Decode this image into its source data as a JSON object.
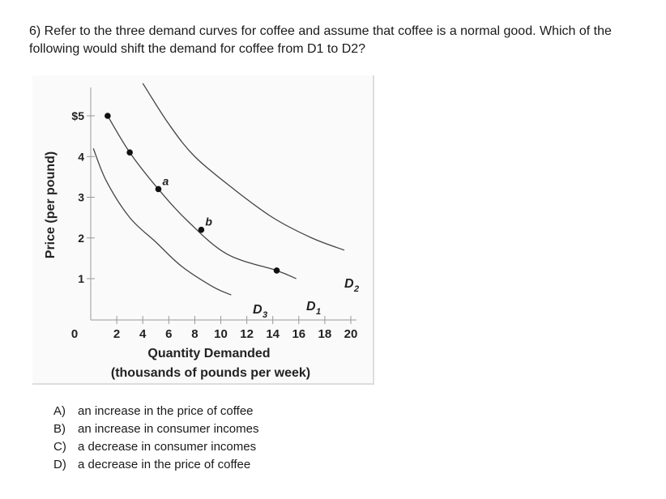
{
  "question": {
    "text": "6) Refer to the three demand curves for coffee and assume that coffee is a normal good. Which of the following would shift the demand for coffee from D1 to D2?"
  },
  "chart_data": {
    "type": "line",
    "ylabel": "Price (per pound)",
    "xlabel": "Quantity Demanded",
    "xlabel_line2": "(thousands of pounds per week)",
    "origin_label": "0",
    "xlim": [
      0,
      20
    ],
    "ylim": [
      0,
      5
    ],
    "x_ticks": [
      "2",
      "4",
      "6",
      "8",
      "10",
      "12",
      "14",
      "16",
      "18",
      "20"
    ],
    "y_ticks": [
      "$5",
      "4",
      "3",
      "2",
      "1"
    ],
    "grid": false,
    "series": [
      {
        "name": "D1",
        "label_main": "D",
        "label_sub": "1",
        "points": [
          [
            1.3,
            5.0
          ],
          [
            3.0,
            4.1
          ],
          [
            5.2,
            3.2
          ],
          [
            7.5,
            2.4
          ],
          [
            10.5,
            1.6
          ],
          [
            14.3,
            1.2
          ],
          [
            15.8,
            1.0
          ]
        ]
      },
      {
        "name": "D2",
        "label_main": "D",
        "label_sub": "2",
        "points": [
          [
            4.0,
            5.8
          ],
          [
            6.0,
            4.8
          ],
          [
            8.0,
            4.0
          ],
          [
            11.0,
            3.2
          ],
          [
            14.0,
            2.5
          ],
          [
            17.0,
            2.0
          ],
          [
            19.5,
            1.7
          ]
        ]
      },
      {
        "name": "D3",
        "label_main": "D",
        "label_sub": "3",
        "points": [
          [
            0.2,
            4.2
          ],
          [
            1.2,
            3.4
          ],
          [
            3.0,
            2.5
          ],
          [
            5.0,
            1.9
          ],
          [
            7.0,
            1.3
          ],
          [
            9.4,
            0.8
          ],
          [
            10.8,
            0.6
          ]
        ]
      }
    ],
    "marked_points": [
      {
        "x": 1.3,
        "y": 5.0,
        "label": ""
      },
      {
        "x": 3.0,
        "y": 4.1,
        "label": ""
      },
      {
        "x": 5.2,
        "y": 3.2,
        "label": "a"
      },
      {
        "x": 8.5,
        "y": 2.2,
        "label": "b"
      },
      {
        "x": 14.3,
        "y": 1.2,
        "label": ""
      }
    ]
  },
  "choices": [
    {
      "letter": "A)",
      "text": "an increase in the price of coffee"
    },
    {
      "letter": "B)",
      "text": "an increase in consumer incomes"
    },
    {
      "letter": "C)",
      "text": "a decrease in consumer incomes"
    },
    {
      "letter": "D)",
      "text": "a decrease in the price of coffee"
    }
  ]
}
